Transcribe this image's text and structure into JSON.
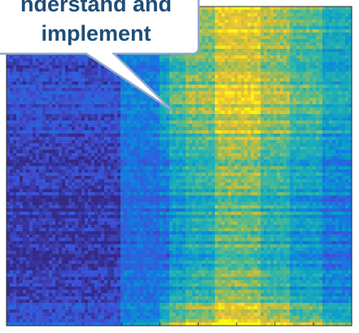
{
  "callout": {
    "lines": [
      "nderstand and",
      "implement"
    ]
  },
  "chart_data": {
    "type": "heatmap",
    "colormap": "parula",
    "colors": {
      "low": "#3e50d6",
      "mid": "#29b3b0",
      "high": "#f2c531",
      "axis": "#333333",
      "callout_border": "#8ea9c8",
      "callout_fill": "#ffffff",
      "callout_text": "#1f4e79"
    },
    "grid": false,
    "legend": "none",
    "title": "",
    "xlabel": "",
    "ylabel": "",
    "tick_labels_visible": false,
    "x_ticks": 9,
    "y_ticks": 8,
    "x_bands": [
      {
        "x": [
          0.0,
          0.33
        ],
        "level": 0.1
      },
      {
        "x": [
          0.33,
          0.44
        ],
        "level": 0.28
      },
      {
        "x": [
          0.44,
          0.47
        ],
        "level": 0.4
      },
      {
        "x": [
          0.47,
          0.52
        ],
        "level": 0.55
      },
      {
        "x": [
          0.52,
          0.6
        ],
        "level": 0.65
      },
      {
        "x": [
          0.6,
          0.74
        ],
        "level": 0.8
      },
      {
        "x": [
          0.74,
          0.82
        ],
        "level": 0.68
      },
      {
        "x": [
          0.82,
          0.92
        ],
        "level": 0.56
      },
      {
        "x": [
          0.92,
          1.0
        ],
        "level": 0.42
      }
    ],
    "y_trend": [
      {
        "y": 0.0,
        "level": 0.08
      },
      {
        "y": 0.15,
        "level": 0.05
      },
      {
        "y": 0.35,
        "level": 0.05
      },
      {
        "y": 0.5,
        "level": -0.1
      },
      {
        "y": 0.7,
        "level": -0.18
      },
      {
        "y": 0.88,
        "level": -0.15
      },
      {
        "y": 0.96,
        "level": 0.05
      },
      {
        "y": 1.0,
        "level": 0.2
      }
    ]
  }
}
